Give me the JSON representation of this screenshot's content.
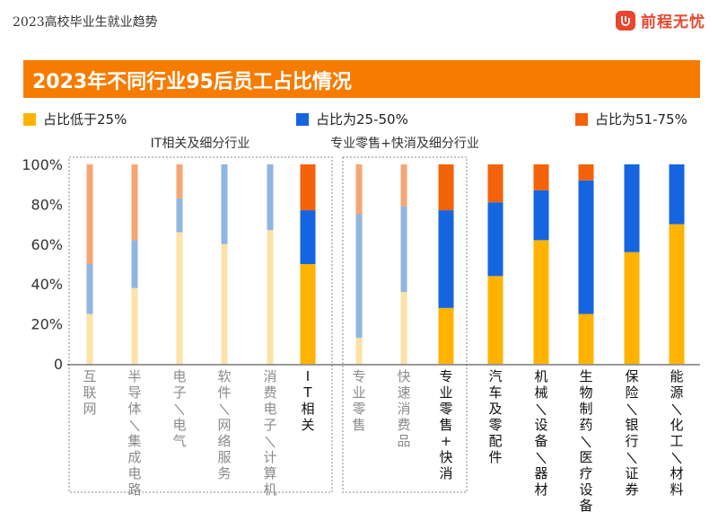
{
  "header": {
    "title": "2023高校毕业生就业趋势",
    "brand": "前程无忧"
  },
  "colors": {
    "yellow": "#ffb300",
    "blue": "#1565e0",
    "orange": "#f4620a",
    "faded_yellow": "#fbe2a6",
    "faded_blue": "#8fb6e0",
    "faded_orange": "#f6a673",
    "banner": "#f57c00",
    "brand": "#e8462e"
  },
  "chart_data": {
    "type": "bar",
    "stacked": true,
    "title": "2023年不同行业95后员工占比情况",
    "legend": [
      "占比低于25%",
      "占比为25-50%",
      "占比为51-75%"
    ],
    "y_ticks": [
      "100%",
      "80%",
      "60%",
      "40%",
      "20%",
      "0"
    ],
    "ylim": [
      0,
      100
    ],
    "groups": [
      "IT相关及细分行业",
      "专业零售+快消及细分行业"
    ],
    "categories": [
      "互联网",
      "半导体/集成电路",
      "电子/电气",
      "软件/网络服务",
      "消费电子/计算机",
      "IT相关",
      "专业零售",
      "快速消费品",
      "专业零售+快消",
      "汽车及零配件",
      "机械/设备/器材",
      "生物制药/医疗设备",
      "保险/银行/证券",
      "能源/化工/材料"
    ],
    "faded": [
      true,
      true,
      true,
      true,
      true,
      false,
      true,
      true,
      false,
      false,
      false,
      false,
      false,
      false
    ],
    "series": [
      {
        "name": "占比低于25%",
        "values": [
          25,
          38,
          66,
          60,
          67,
          50,
          13,
          36,
          28,
          44,
          62,
          25,
          56,
          70
        ]
      },
      {
        "name": "占比为25-50%",
        "values": [
          25,
          24,
          17,
          40,
          33,
          27,
          62,
          43,
          49,
          37,
          25,
          67,
          44,
          30
        ]
      },
      {
        "name": "占比为51-75%",
        "values": [
          50,
          38,
          17,
          0,
          0,
          23,
          25,
          21,
          23,
          19,
          13,
          8,
          0,
          0
        ]
      }
    ]
  }
}
